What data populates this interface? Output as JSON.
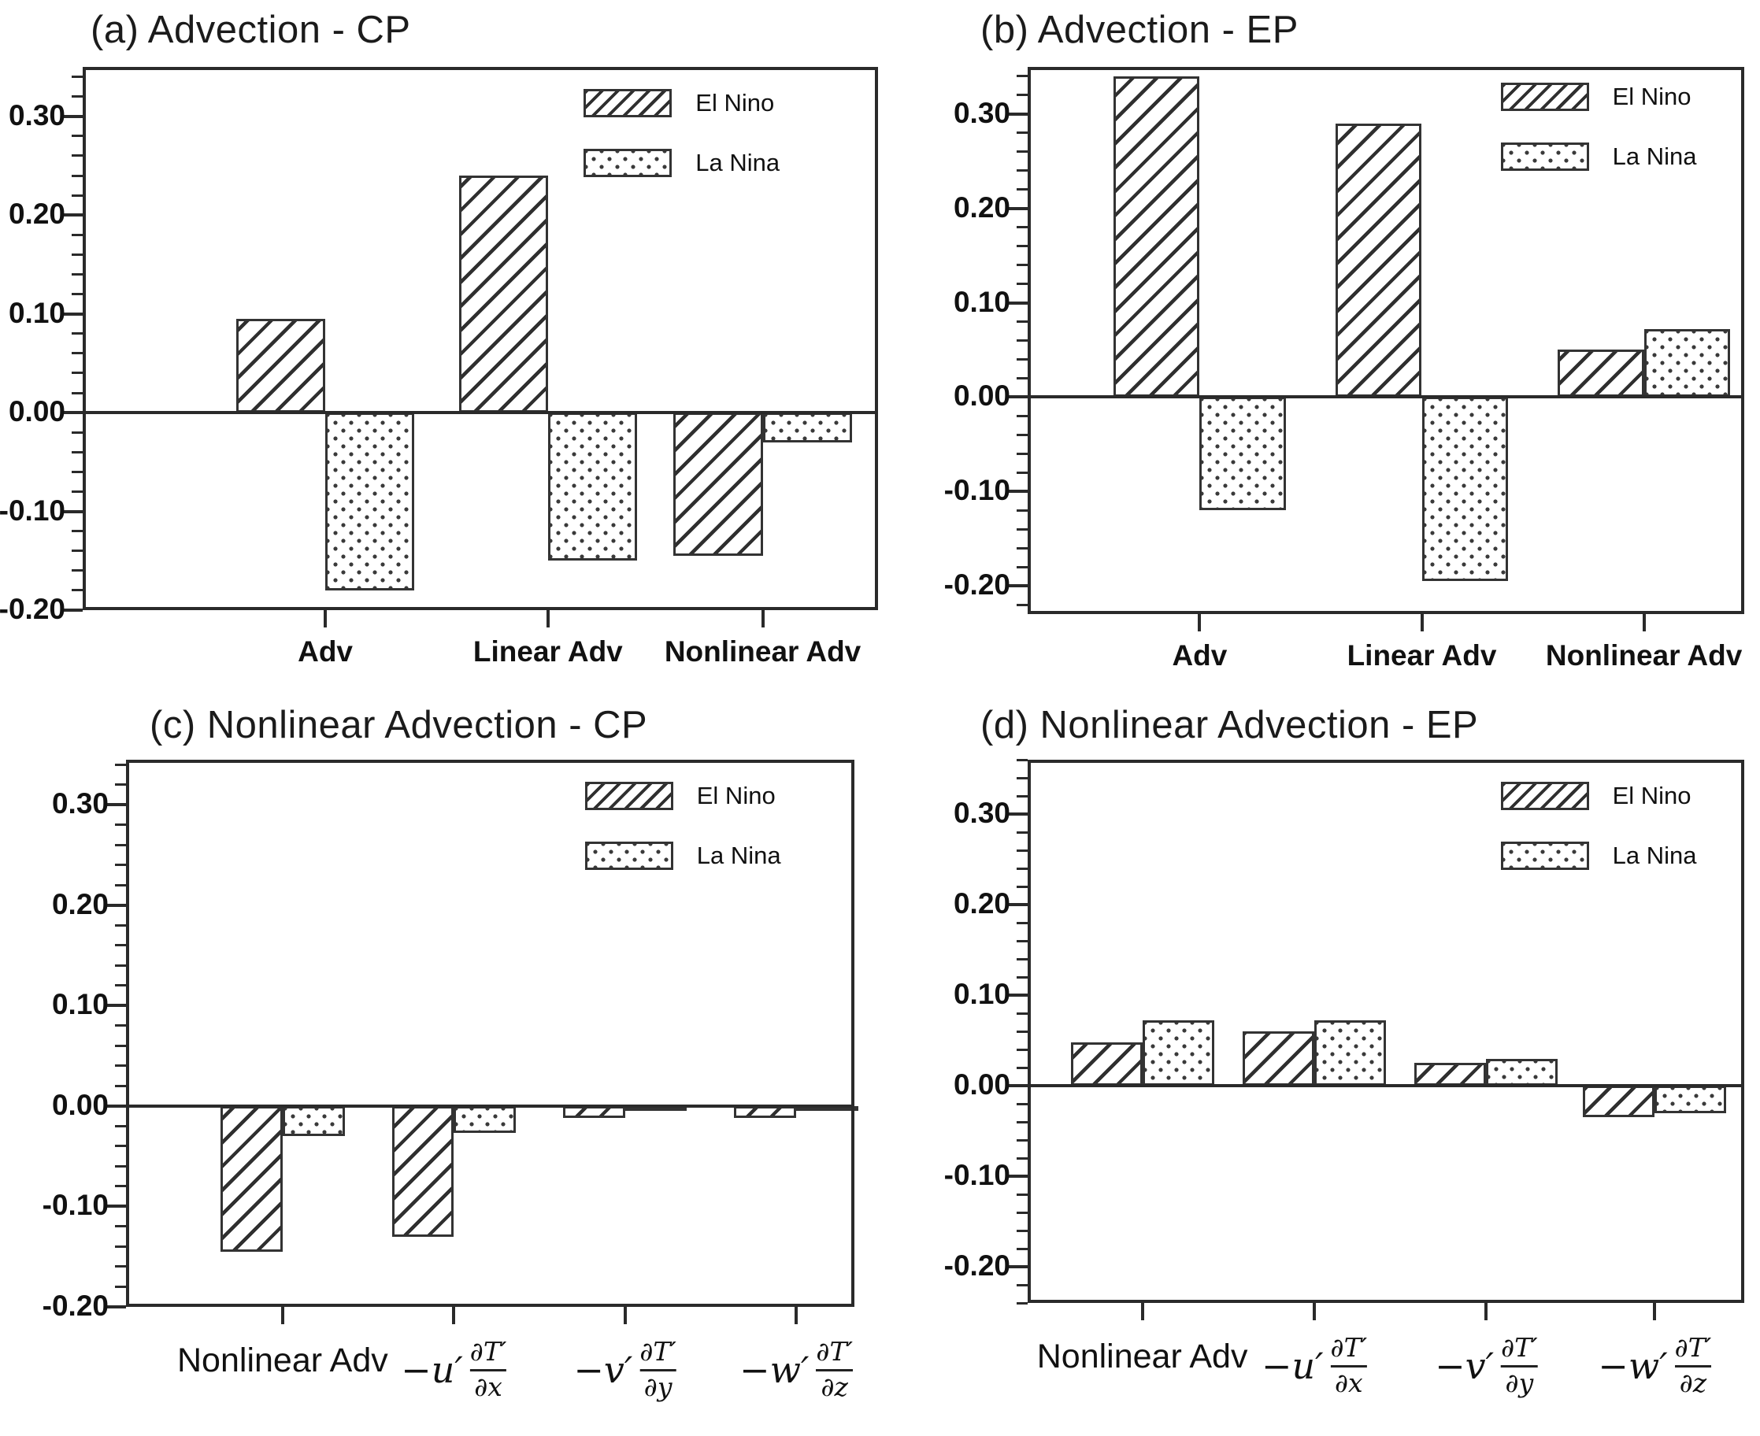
{
  "chart_data": [
    {
      "id": "a",
      "type": "bar",
      "title": "(a) Advection - CP",
      "categories": [
        "Adv",
        "Linear Adv",
        "Nonlinear Adv"
      ],
      "series": [
        {
          "name": "El Nino",
          "pattern": "hatch",
          "values": [
            0.095,
            0.24,
            -0.145
          ]
        },
        {
          "name": "La Nina",
          "pattern": "dots",
          "values": [
            -0.18,
            -0.15,
            -0.03
          ]
        }
      ],
      "ylim": [
        -0.2,
        0.35
      ],
      "yticks": [
        {
          "v": 0.3,
          "label": "0.30"
        },
        {
          "v": 0.2,
          "label": "0.20"
        },
        {
          "v": 0.1,
          "label": "0.10"
        },
        {
          "v": 0.0,
          "label": "0.00"
        },
        {
          "v": -0.1,
          "label": "-0.10"
        },
        {
          "v": -0.2,
          "label": "-0.20"
        }
      ],
      "minor_step": 0.02,
      "legend_position": "top-right",
      "grid": false
    },
    {
      "id": "b",
      "type": "bar",
      "title": "(b) Advection - EP",
      "categories": [
        "Adv",
        "Linear Adv",
        "Nonlinear Adv"
      ],
      "series": [
        {
          "name": "El Nino",
          "pattern": "hatch",
          "values": [
            0.34,
            0.29,
            0.05
          ]
        },
        {
          "name": "La Nina",
          "pattern": "dots",
          "values": [
            -0.12,
            -0.195,
            0.072
          ]
        }
      ],
      "ylim": [
        -0.23,
        0.35
      ],
      "yticks": [
        {
          "v": 0.3,
          "label": "0.30"
        },
        {
          "v": 0.2,
          "label": "0.20"
        },
        {
          "v": 0.1,
          "label": "0.10"
        },
        {
          "v": 0.0,
          "label": "0.00"
        },
        {
          "v": -0.1,
          "label": "-0.10"
        },
        {
          "v": -0.2,
          "label": "-0.20"
        }
      ],
      "minor_step": 0.02,
      "legend_position": "top-right",
      "grid": false
    },
    {
      "id": "c",
      "type": "bar",
      "title": "(c) Nonlinear Advection - CP",
      "categories": [
        "Nonlinear Adv",
        {
          "prefix": "−u′",
          "num": "∂T′",
          "den": "∂x"
        },
        {
          "prefix": "−v′",
          "num": "∂T′",
          "den": "∂y"
        },
        {
          "prefix": "−w′",
          "num": "∂T′",
          "den": "∂z"
        }
      ],
      "series": [
        {
          "name": "El Nino",
          "pattern": "hatch",
          "values": [
            -0.145,
            -0.13,
            -0.012,
            -0.012
          ]
        },
        {
          "name": "La Nina",
          "pattern": "dots",
          "values": [
            -0.03,
            -0.027,
            -0.005,
            -0.005
          ]
        }
      ],
      "ylim": [
        -0.2,
        0.345
      ],
      "yticks": [
        {
          "v": 0.3,
          "label": "0.30"
        },
        {
          "v": 0.2,
          "label": "0.20"
        },
        {
          "v": 0.1,
          "label": "0.10"
        },
        {
          "v": 0.0,
          "label": "0.00"
        },
        {
          "v": -0.1,
          "label": "-0.10"
        },
        {
          "v": -0.2,
          "label": "-0.20"
        }
      ],
      "minor_step": 0.02,
      "legend_position": "top-right",
      "grid": false
    },
    {
      "id": "d",
      "type": "bar",
      "title": "(d) Nonlinear Advection - EP",
      "categories": [
        "Nonlinear Adv",
        {
          "prefix": "−u′",
          "num": "∂T′",
          "den": "∂x"
        },
        {
          "prefix": "−v′",
          "num": "∂T′",
          "den": "∂y"
        },
        {
          "prefix": "−w′",
          "num": "∂T′",
          "den": "∂z"
        }
      ],
      "series": [
        {
          "name": "El Nino",
          "pattern": "hatch",
          "values": [
            0.048,
            0.06,
            0.025,
            -0.035
          ]
        },
        {
          "name": "La Nina",
          "pattern": "dots",
          "values": [
            0.072,
            0.072,
            0.03,
            -0.03
          ]
        }
      ],
      "ylim": [
        -0.24,
        0.36
      ],
      "yticks": [
        {
          "v": 0.3,
          "label": "0.30"
        },
        {
          "v": 0.2,
          "label": "0.20"
        },
        {
          "v": 0.1,
          "label": "0.10"
        },
        {
          "v": 0.0,
          "label": "0.00"
        },
        {
          "v": -0.1,
          "label": "-0.10"
        },
        {
          "v": -0.2,
          "label": "-0.20"
        }
      ],
      "minor_step": 0.02,
      "legend_position": "top-right",
      "grid": false
    }
  ],
  "colors": {
    "axis": "#2a2a2a",
    "bar_outline": "#333333",
    "text": "#111111",
    "background": "#ffffff"
  }
}
